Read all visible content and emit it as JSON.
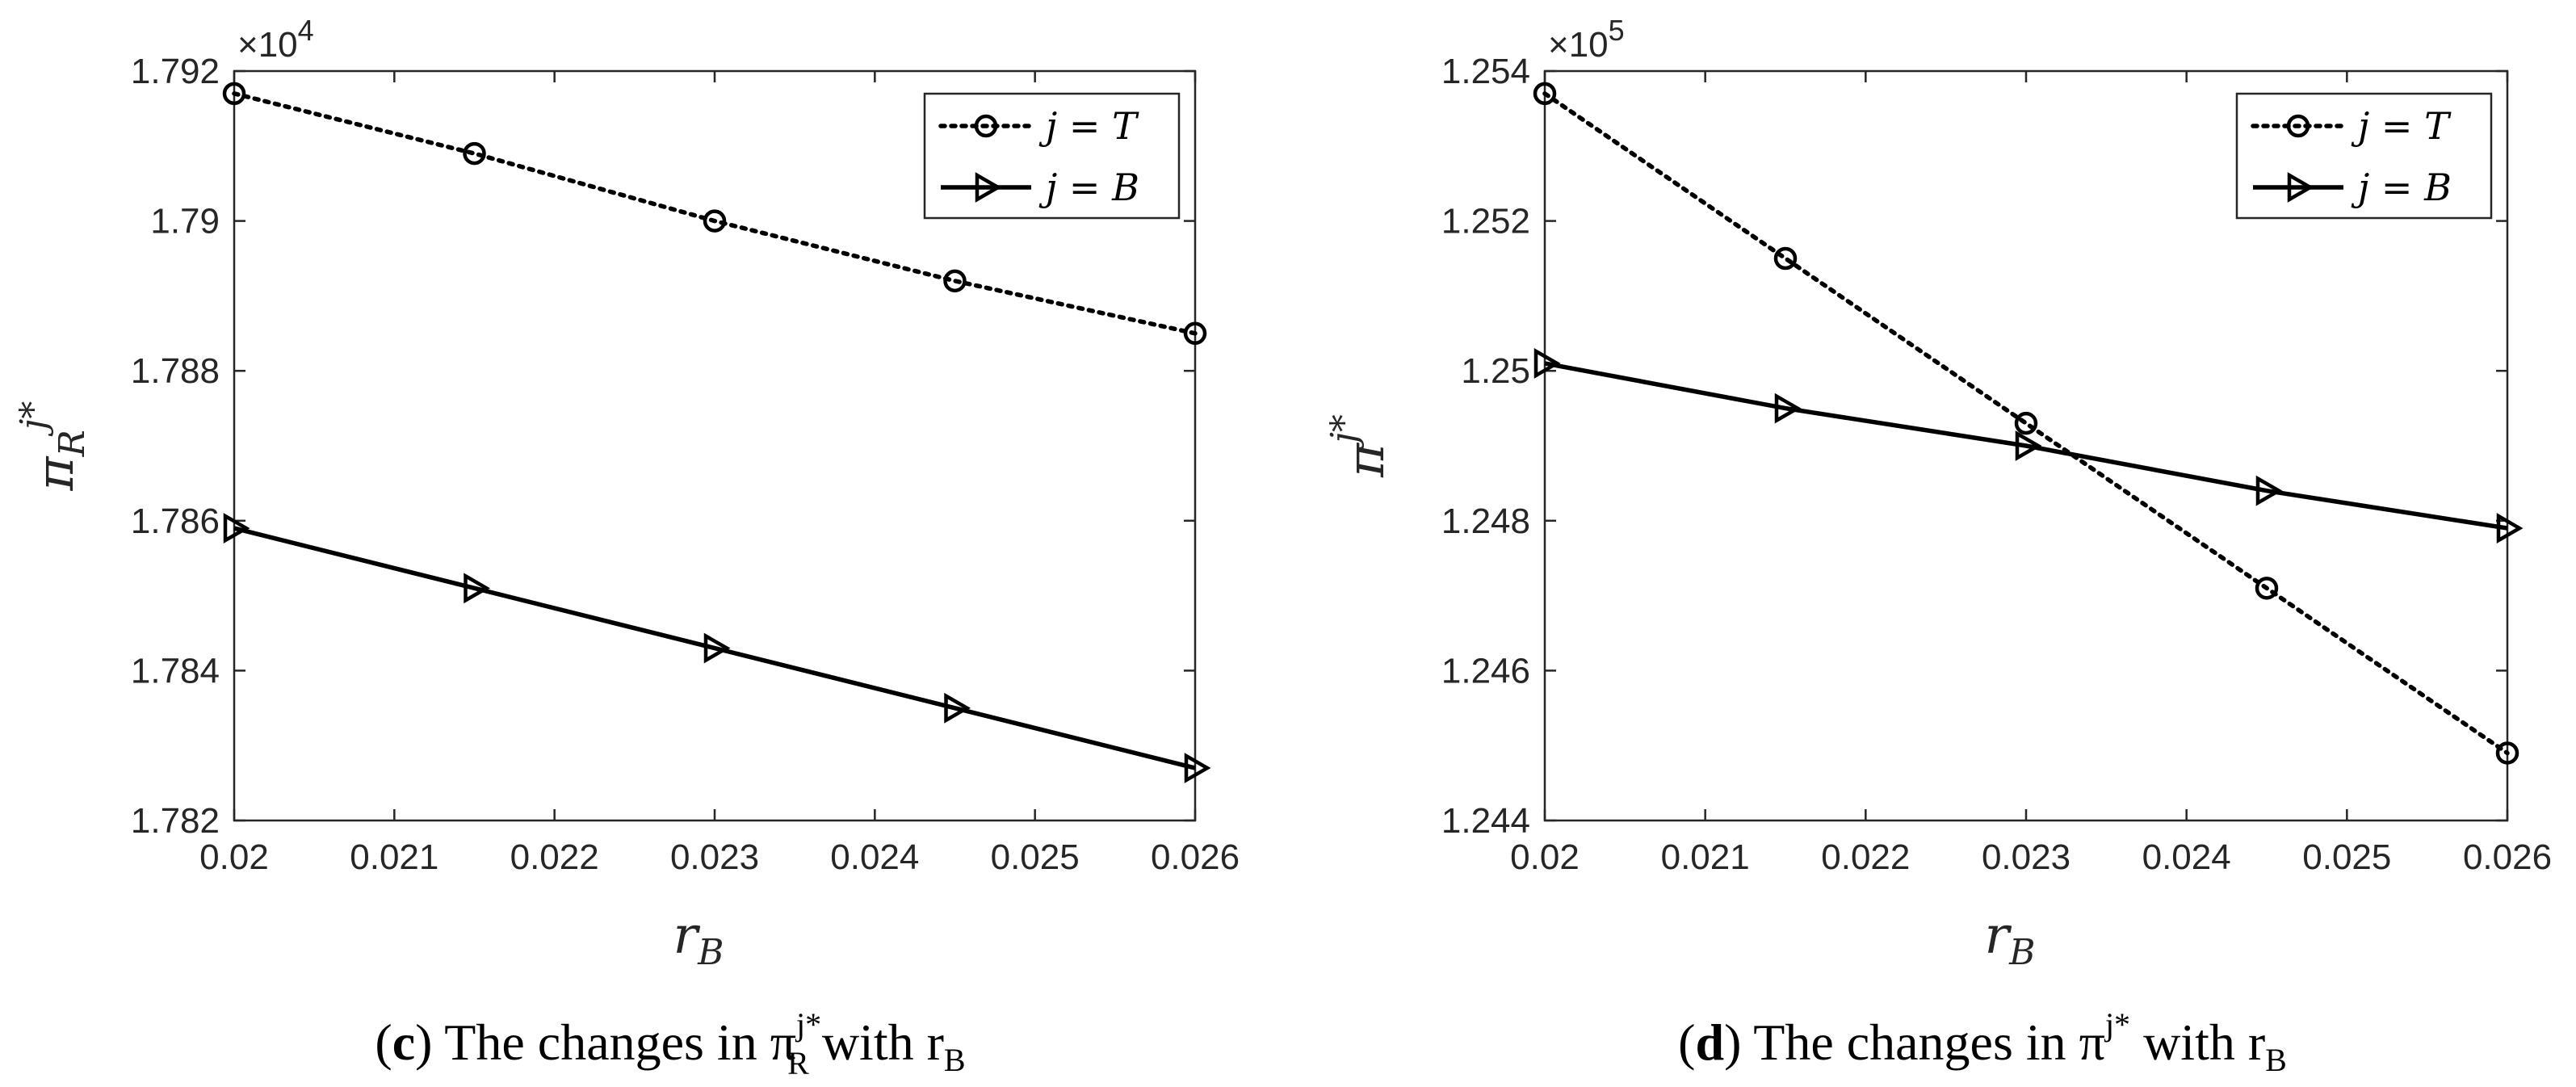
{
  "chart_data": [
    {
      "type": "line",
      "panel_label": "c",
      "caption": "The changes in π",
      "caption_sub": "R",
      "caption_sup": "j*",
      "caption_with": "with r",
      "caption_with_sub": "B",
      "xlabel": "r",
      "xlabel_sub": "B",
      "ylabel": "π",
      "ylabel_sub": "R",
      "ylabel_sup": "j*",
      "y_multiplier_base": "×10",
      "y_multiplier_exp": "4",
      "xlim": [
        0.02,
        0.026
      ],
      "ylim": [
        1.782,
        1.792
      ],
      "xticks": [
        0.02,
        0.021,
        0.022,
        0.023,
        0.024,
        0.025,
        0.026
      ],
      "xtick_labels": [
        "0.02",
        "0.021",
        "0.022",
        "0.023",
        "0.024",
        "0.025",
        "0.026"
      ],
      "yticks": [
        1.782,
        1.784,
        1.786,
        1.788,
        1.79,
        1.792
      ],
      "ytick_labels": [
        "1.782",
        "1.784",
        "1.786",
        "1.788",
        "1.79",
        "1.792"
      ],
      "grid": false,
      "legend_position": "top-right",
      "x": [
        0.02,
        0.0215,
        0.023,
        0.0245,
        0.026
      ],
      "series": [
        {
          "name": "j = T",
          "name_var": "j",
          "name_eq": "=",
          "name_val": "T",
          "style": "dotted",
          "marker": "circle",
          "values": [
            1.7917,
            1.7909,
            1.79,
            1.7892,
            1.7885
          ]
        },
        {
          "name": "j = B",
          "name_var": "j",
          "name_eq": "=",
          "name_val": "B",
          "style": "solid",
          "marker": "triangle-right",
          "values": [
            1.7859,
            1.7851,
            1.7843,
            1.7835,
            1.7827
          ]
        }
      ]
    },
    {
      "type": "line",
      "panel_label": "d",
      "caption": "The changes in π",
      "caption_sub": "",
      "caption_sup": "j*",
      "caption_with": "with r",
      "caption_with_sub": "B",
      "xlabel": "r",
      "xlabel_sub": "B",
      "ylabel": "π",
      "ylabel_sub": "",
      "ylabel_sup": "j*",
      "y_multiplier_base": "×10",
      "y_multiplier_exp": "5",
      "xlim": [
        0.02,
        0.026
      ],
      "ylim": [
        1.244,
        1.254
      ],
      "xticks": [
        0.02,
        0.021,
        0.022,
        0.023,
        0.024,
        0.025,
        0.026
      ],
      "xtick_labels": [
        "0.02",
        "0.021",
        "0.022",
        "0.023",
        "0.024",
        "0.025",
        "0.026"
      ],
      "yticks": [
        1.244,
        1.246,
        1.248,
        1.25,
        1.252,
        1.254
      ],
      "ytick_labels": [
        "1.244",
        "1.246",
        "1.248",
        "1.25",
        "1.252",
        "1.254"
      ],
      "grid": false,
      "legend_position": "top-right",
      "x": [
        0.02,
        0.0215,
        0.023,
        0.0245,
        0.026
      ],
      "series": [
        {
          "name": "j = T",
          "name_var": "j",
          "name_eq": "=",
          "name_val": "T",
          "style": "dotted",
          "marker": "circle",
          "values": [
            1.2537,
            1.2515,
            1.2493,
            1.2471,
            1.2449
          ]
        },
        {
          "name": "j = B",
          "name_var": "j",
          "name_eq": "=",
          "name_val": "B",
          "style": "solid",
          "marker": "triangle-right",
          "values": [
            1.2501,
            1.2495,
            1.249,
            1.2484,
            1.2479
          ]
        }
      ]
    }
  ]
}
